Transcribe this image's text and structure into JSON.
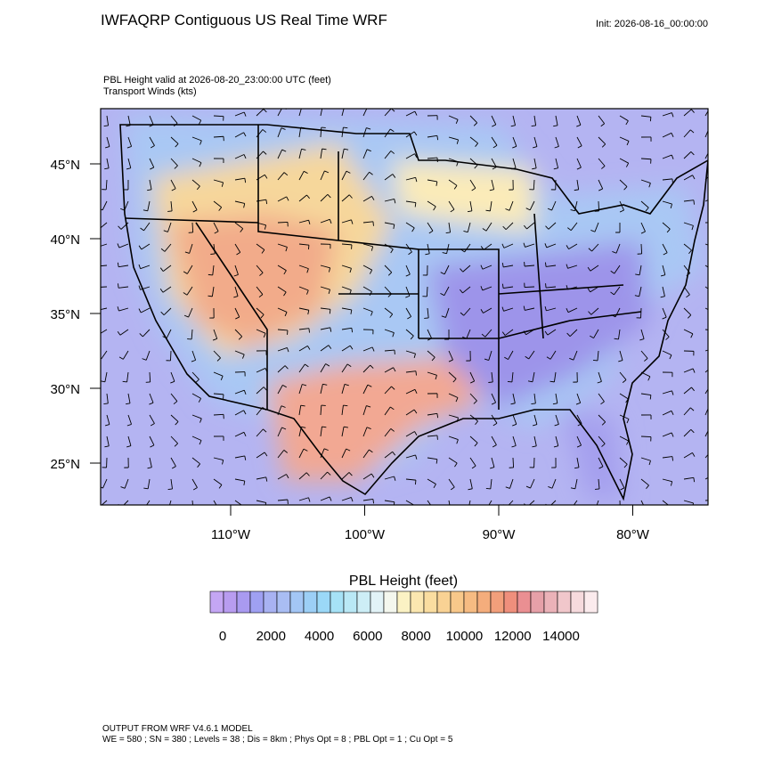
{
  "header": {
    "title": "IWFAQRP Contiguous US Real Time WRF",
    "init": "Init: 2026-08-16_00:00:00"
  },
  "subtitle": [
    "PBL Height valid at 2026-08-20_23:00:00 UTC   (feet)",
    "Transport Winds   (kts)"
  ],
  "map": {
    "lat_ticks": [
      {
        "value": 45,
        "label": "45°N"
      },
      {
        "value": 40,
        "label": "40°N"
      },
      {
        "value": 35,
        "label": "35°N"
      },
      {
        "value": 30,
        "label": "30°N"
      },
      {
        "value": 25,
        "label": "25°N"
      }
    ],
    "lon_ticks": [
      {
        "value": -110,
        "label": "110°W"
      },
      {
        "value": -100,
        "label": "100°W"
      },
      {
        "value": -90,
        "label": "90°W"
      },
      {
        "value": -80,
        "label": "80°W"
      }
    ]
  },
  "colorbar": {
    "title": "PBL Height  (feet)",
    "colors": [
      "#c4a6f4",
      "#b89cf0",
      "#a99af0",
      "#9fa0f2",
      "#a8b2f2",
      "#a9bdf3",
      "#a3c6f5",
      "#9ccff6",
      "#9bd8f7",
      "#a6e2f6",
      "#b9e8f5",
      "#cdeef6",
      "#e2f3f7",
      "#f4f7ee",
      "#fbf2c4",
      "#fbe7b0",
      "#fadda0",
      "#f9d294",
      "#f8c88a",
      "#f6bb82",
      "#f4ad7c",
      "#f29f7b",
      "#ef8f7c",
      "#ea8f92",
      "#e6a0a8",
      "#ebb2b8",
      "#f1c7cb",
      "#f6dadd",
      "#fbebed"
    ],
    "ticks": [
      0,
      2000,
      4000,
      6000,
      8000,
      10000,
      12000,
      14000
    ]
  },
  "footer": [
    "OUTPUT FROM WRF V4.6.1 MODEL",
    "WE = 580 ; SN = 380 ; Levels = 38 ; Dis = 8km ; Phys Opt = 8 ; PBL Opt = 1 ; Cu Opt = 5"
  ]
}
